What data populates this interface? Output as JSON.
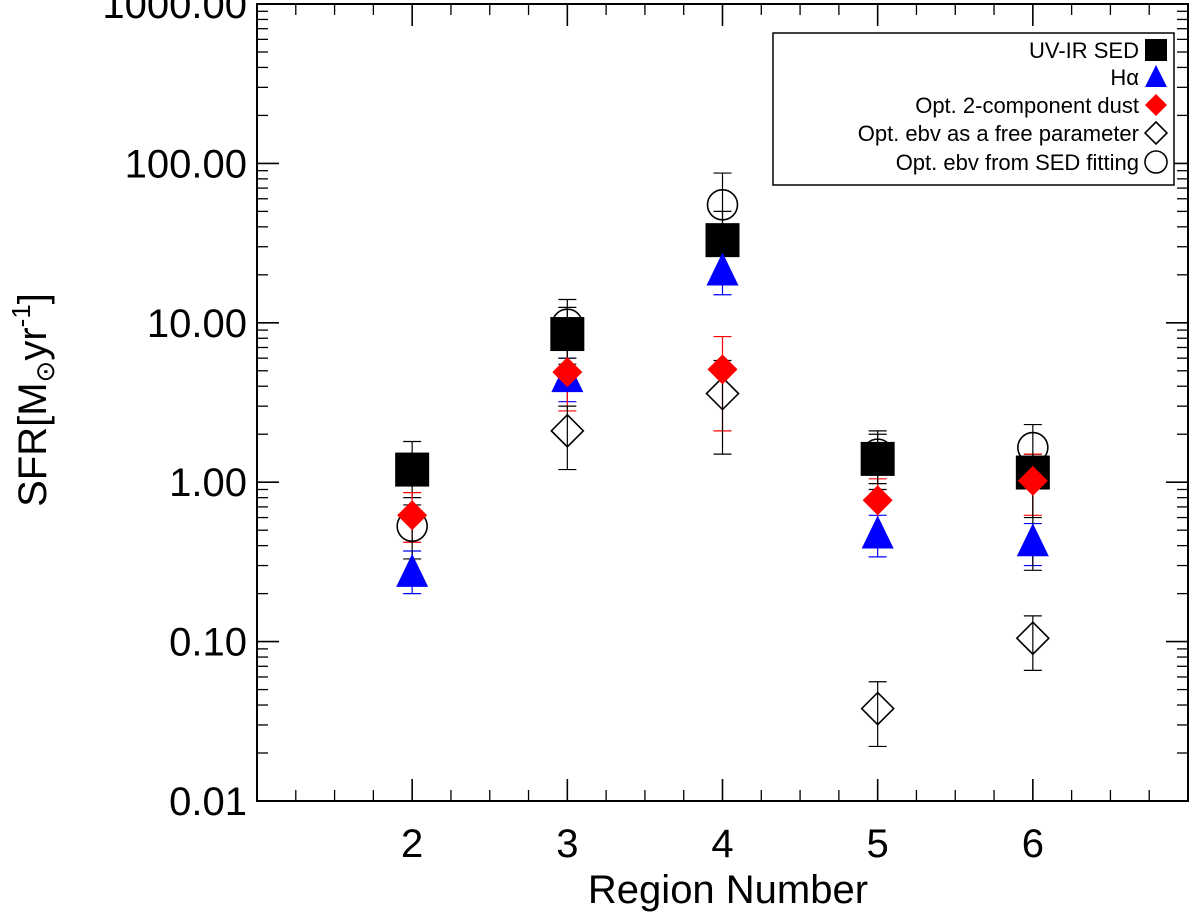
{
  "chart_data": {
    "type": "scatter",
    "title": "",
    "xlabel": "Region Number",
    "ylabel": "SFR[M",
    "ylabel_unit": "yr",
    "ylabel_sup": "-1",
    "ylabel_sun_symbol": "⊙",
    "yscale": "log",
    "xlim": [
      1,
      7
    ],
    "ylim": [
      0.01,
      1000
    ],
    "x_ticks": [
      "2",
      "3",
      "4",
      "5",
      "6"
    ],
    "y_ticks": [
      "0.01",
      "0.10",
      "1.00",
      "10.00",
      "100.00",
      "1000.00"
    ],
    "legend_position": "top-right",
    "series": [
      {
        "name": "UV-IR SED",
        "marker": "filled-square",
        "color": "#000000",
        "points": [
          {
            "x": 2,
            "y": 1.2,
            "ylo": 0.8,
            "yhi": 1.8
          },
          {
            "x": 3,
            "y": 8.5,
            "ylo": 5.5,
            "yhi": 12.5
          },
          {
            "x": 4,
            "y": 33,
            "ylo": 20,
            "yhi": 50
          },
          {
            "x": 5,
            "y": 1.4,
            "ylo": 0.9,
            "yhi": 2.1
          },
          {
            "x": 6,
            "y": 1.15,
            "ylo": 0.6,
            "yhi": 1.5
          }
        ]
      },
      {
        "name": "Hα",
        "marker": "filled-triangle",
        "color": "#0000ff",
        "points": [
          {
            "x": 2,
            "y": 0.27,
            "ylo": 0.2,
            "yhi": 0.37
          },
          {
            "x": 3,
            "y": 4.5,
            "ylo": 3.2,
            "yhi": 6.0
          },
          {
            "x": 4,
            "y": 21,
            "ylo": 15,
            "yhi": 30
          },
          {
            "x": 5,
            "y": 0.47,
            "ylo": 0.34,
            "yhi": 0.62
          },
          {
            "x": 6,
            "y": 0.42,
            "ylo": 0.3,
            "yhi": 0.55
          }
        ]
      },
      {
        "name": "Opt. 2-component dust",
        "marker": "filled-diamond",
        "color": "#ff0000",
        "points": [
          {
            "x": 2,
            "y": 0.62,
            "ylo": 0.42,
            "yhi": 0.86
          },
          {
            "x": 3,
            "y": 4.9,
            "ylo": 2.8,
            "yhi": 7.5
          },
          {
            "x": 4,
            "y": 5.1,
            "ylo": 2.1,
            "yhi": 8.2
          },
          {
            "x": 5,
            "y": 0.77,
            "ylo": 0.45,
            "yhi": 1.05
          },
          {
            "x": 6,
            "y": 1.02,
            "ylo": 0.62,
            "yhi": 1.5
          }
        ]
      },
      {
        "name": "Opt. ebv as a free parameter",
        "marker": "open-diamond",
        "color": "#000000",
        "points": [
          {
            "x": 3,
            "y": 2.1,
            "ylo": 1.2,
            "yhi": 3.0
          },
          {
            "x": 4,
            "y": 3.6,
            "ylo": 1.5,
            "yhi": 5.8
          },
          {
            "x": 5,
            "y": 0.038,
            "ylo": 0.022,
            "yhi": 0.056
          },
          {
            "x": 6,
            "y": 0.105,
            "ylo": 0.066,
            "yhi": 0.145
          }
        ]
      },
      {
        "name": "Opt. ebv from SED fitting",
        "marker": "open-circle",
        "color": "#000000",
        "points": [
          {
            "x": 2,
            "y": 0.53,
            "ylo": 0.33,
            "yhi": 0.72
          },
          {
            "x": 3,
            "y": 9.8,
            "ylo": 6.0,
            "yhi": 14.0
          },
          {
            "x": 4,
            "y": 55,
            "ylo": 35,
            "yhi": 87
          },
          {
            "x": 5,
            "y": 1.5,
            "ylo": 0.98,
            "yhi": 2.0
          },
          {
            "x": 6,
            "y": 1.65,
            "ylo": 0.28,
            "yhi": 2.3
          }
        ]
      }
    ]
  }
}
